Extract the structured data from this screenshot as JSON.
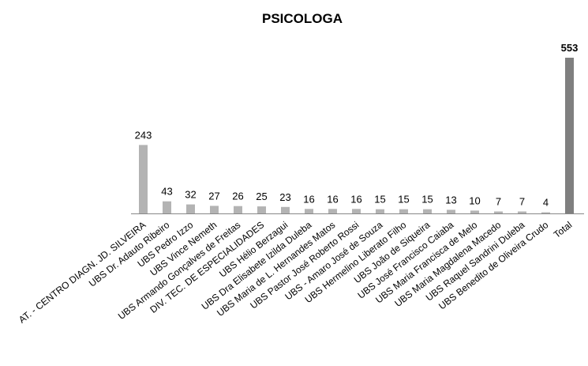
{
  "chart_data": {
    "type": "bar",
    "title": "PSICOLOGA",
    "xlabel": "",
    "ylabel": "",
    "ylim": [
      0,
      553
    ],
    "grid": false,
    "legend": "none",
    "categories": [
      "AT. - CENTRO DIAGN. JD. SILVEIRA",
      "UBS Dr. Adauto Ribeiro",
      "UBS Pedro Izzo",
      "UBS Vince Nemeth",
      "UBS Armando Gonçalves de Freitas",
      "DIV. TEC. DE ESPECIALIDADES",
      "UBS Hélio Berzagui",
      "UBS Dra Elisabete Izilda Duleba",
      "UBS Maria de L. Hernandes Matos",
      "UBS Pastor José Roberto Rossi",
      "UBS - Amaro José de Souza",
      "UBS Hermelino Liberato Filho",
      "UBS João de Siqueira",
      "UBS José Francisco Caiaba",
      "UBS Maria Francisca de Melo",
      "UBS Maria Magdalena Macedo",
      "UBS Raquel Sandrini Duleba",
      "UBS Benedito de Oliveira Crudo",
      "Total"
    ],
    "values": [
      243,
      43,
      32,
      27,
      26,
      25,
      23,
      16,
      16,
      16,
      15,
      15,
      15,
      13,
      10,
      7,
      7,
      4,
      553
    ],
    "colors": {
      "bar": "#b3b3b3",
      "total_bar": "#7f7f7f",
      "axis": "#888888"
    }
  }
}
